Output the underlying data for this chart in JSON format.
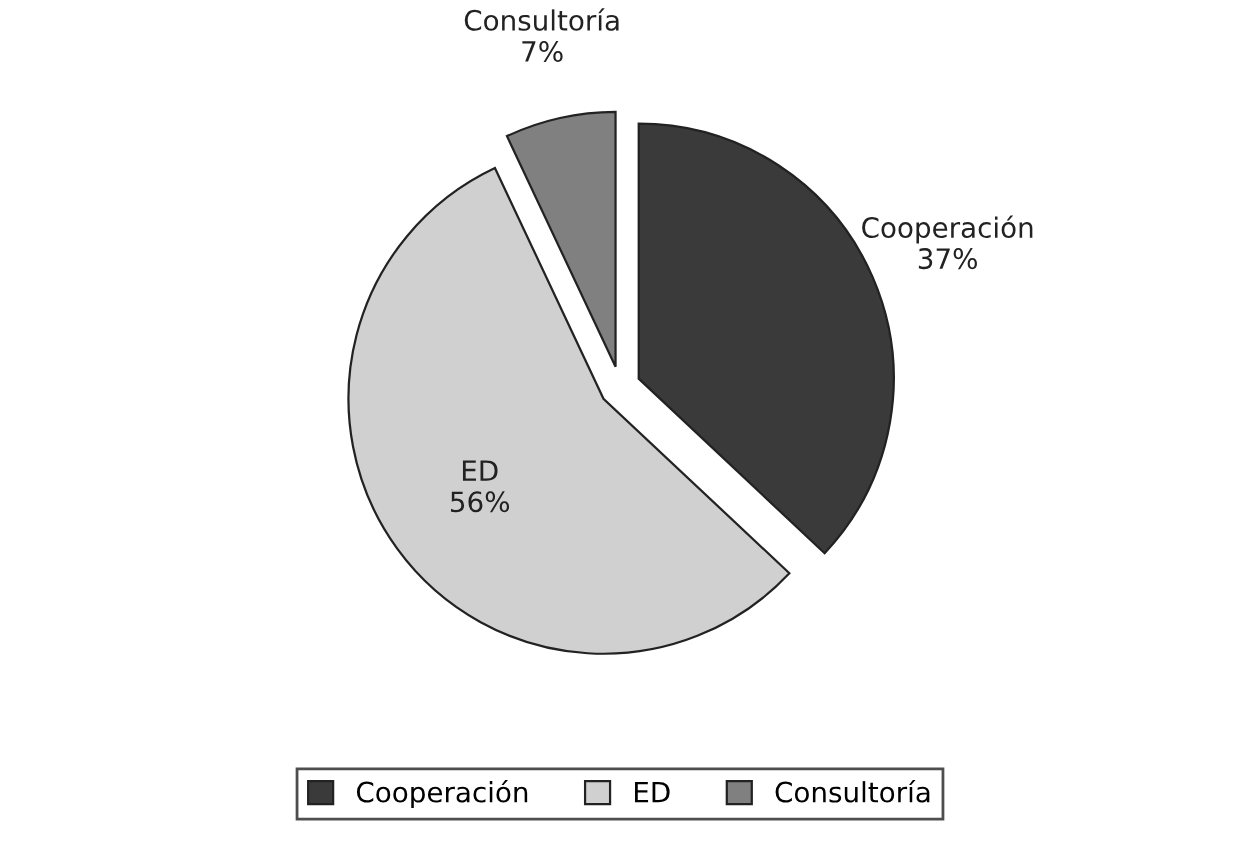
{
  "chart_data": {
    "type": "pie",
    "categories": [
      "Cooperación",
      "ED",
      "Consultoría"
    ],
    "values": [
      37,
      56,
      7
    ],
    "value_labels": [
      "37%",
      "56%",
      "7%"
    ],
    "colors": [
      "#3a3a3a",
      "#d0d0d0",
      "#808080"
    ],
    "legend": "bottom"
  }
}
